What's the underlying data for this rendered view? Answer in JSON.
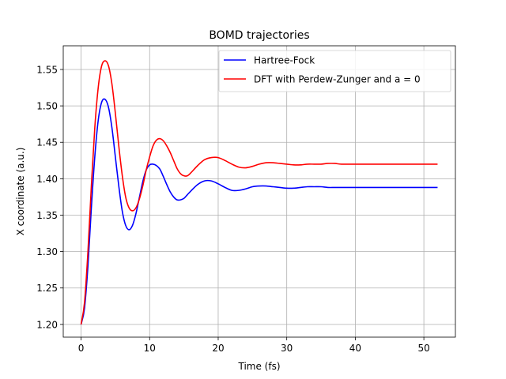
{
  "chart_data": {
    "type": "line",
    "title": "BOMD trajectories",
    "xlabel": "Time (fs)",
    "ylabel": "X coordinate (a.u.)",
    "xlim": [
      -2.6,
      54.6
    ],
    "ylim": [
      1.1825,
      1.5825
    ],
    "xticks": [
      0,
      10,
      20,
      30,
      40,
      50
    ],
    "xtick_labels": [
      "0",
      "10",
      "20",
      "30",
      "40",
      "50"
    ],
    "yticks": [
      1.2,
      1.25,
      1.3,
      1.35,
      1.4,
      1.45,
      1.5,
      1.55
    ],
    "ytick_labels": [
      "1.20",
      "1.25",
      "1.30",
      "1.35",
      "1.40",
      "1.45",
      "1.50",
      "1.55"
    ],
    "grid": true,
    "legend_position": "top-right",
    "series": [
      {
        "name": "Hartree-Fock",
        "color": "#0000ff",
        "x": [
          0,
          0.5,
          1,
          1.5,
          2,
          2.5,
          3,
          3.5,
          4,
          4.5,
          5,
          5.5,
          6,
          6.5,
          7,
          7.5,
          8,
          8.5,
          9,
          9.5,
          10,
          10.5,
          11,
          11.5,
          12,
          12.5,
          13,
          13.5,
          14,
          14.5,
          15,
          15.5,
          16,
          17,
          18,
          19,
          20,
          21,
          22,
          23,
          24,
          25,
          26,
          27,
          28,
          29,
          30,
          31,
          32,
          33,
          34,
          35,
          36,
          37,
          38,
          40,
          42,
          44,
          46,
          48,
          50,
          52
        ],
        "y": [
          1.2,
          1.222,
          1.28,
          1.36,
          1.43,
          1.48,
          1.505,
          1.509,
          1.498,
          1.47,
          1.43,
          1.39,
          1.356,
          1.336,
          1.33,
          1.336,
          1.352,
          1.374,
          1.396,
          1.412,
          1.419,
          1.42,
          1.418,
          1.413,
          1.403,
          1.392,
          1.382,
          1.375,
          1.371,
          1.371,
          1.373,
          1.378,
          1.383,
          1.392,
          1.397,
          1.397,
          1.393,
          1.388,
          1.384,
          1.384,
          1.386,
          1.389,
          1.39,
          1.39,
          1.389,
          1.388,
          1.387,
          1.387,
          1.388,
          1.389,
          1.389,
          1.389,
          1.388,
          1.388,
          1.388,
          1.388,
          1.388,
          1.388,
          1.388,
          1.388,
          1.388,
          1.388
        ]
      },
      {
        "name": "DFT with Perdew-Zunger and a = 0",
        "color": "#ff0000",
        "x": [
          0,
          0.5,
          1,
          1.5,
          2,
          2.5,
          3,
          3.5,
          4,
          4.5,
          5,
          5.5,
          6,
          6.5,
          7,
          7.5,
          8,
          8.5,
          9,
          9.5,
          10,
          10.5,
          11,
          11.5,
          12,
          12.5,
          13,
          13.5,
          14,
          14.5,
          15,
          15.5,
          16,
          17,
          18,
          19,
          20,
          21,
          22,
          23,
          24,
          25,
          26,
          27,
          28,
          29,
          30,
          31,
          32,
          33,
          34,
          35,
          36,
          37,
          38,
          40,
          42,
          44,
          46,
          48,
          50,
          52
        ],
        "y": [
          1.2,
          1.23,
          1.3,
          1.39,
          1.47,
          1.525,
          1.555,
          1.562,
          1.555,
          1.53,
          1.49,
          1.445,
          1.405,
          1.375,
          1.36,
          1.356,
          1.36,
          1.372,
          1.39,
          1.412,
          1.43,
          1.445,
          1.453,
          1.455,
          1.452,
          1.445,
          1.436,
          1.425,
          1.414,
          1.407,
          1.404,
          1.404,
          1.408,
          1.418,
          1.426,
          1.429,
          1.429,
          1.425,
          1.42,
          1.416,
          1.415,
          1.417,
          1.42,
          1.422,
          1.422,
          1.421,
          1.42,
          1.419,
          1.419,
          1.42,
          1.42,
          1.42,
          1.421,
          1.421,
          1.42,
          1.42,
          1.42,
          1.42,
          1.42,
          1.42,
          1.42,
          1.42
        ]
      }
    ]
  }
}
